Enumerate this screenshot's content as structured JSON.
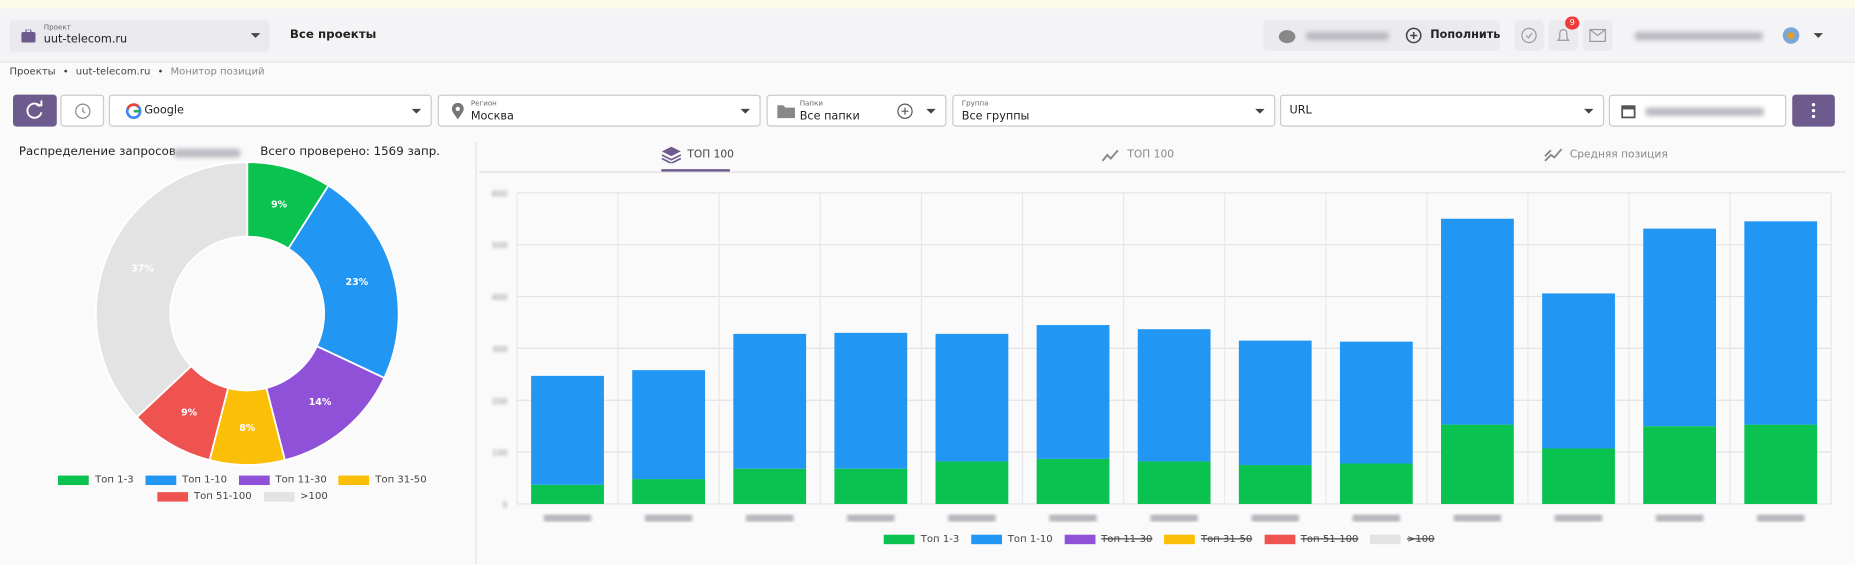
{
  "header": {
    "project_label": "Проект",
    "project": "uut-telecom.ru",
    "all_projects": "Все проекты",
    "topup": "Пополнить",
    "notifications": "9"
  },
  "breadcrumbs": [
    "Проекты",
    "uut-telecom.ru",
    "Монитор позиций"
  ],
  "filters": {
    "engine": "Google",
    "region_label": "Регион",
    "region": "Москва",
    "folders_label": "Папки",
    "folders": "Все папки",
    "group_label": "Группа",
    "group": "Все группы",
    "url": "URL"
  },
  "tabs": [
    "ТОП 100",
    "ТОП 100",
    "Средняя позиция"
  ],
  "chart_data": [
    {
      "type": "pie",
      "title": "Распределение запросов",
      "summary": "Всего проверено: 1569 запр.",
      "donut": true,
      "categories": [
        "Топ 1-3",
        "Топ 1-10",
        "Топ 11-30",
        "Топ 31-50",
        "Топ 51-100",
        ">100"
      ],
      "values": [
        9,
        23,
        14,
        8,
        9,
        37
      ],
      "value_labels": [
        "9%",
        "23%",
        "14%",
        "8%",
        "9%",
        "37%"
      ],
      "colors": [
        "#0ac24f",
        "#2196f3",
        "#8e51d8",
        "#fbbf07",
        "#ef5350",
        "#e3e3e3"
      ]
    },
    {
      "type": "stacked_bar",
      "categories": [
        null,
        null,
        null,
        null,
        null,
        null,
        null,
        null,
        null,
        null,
        null,
        null,
        null
      ],
      "ylim": [
        0,
        600
      ],
      "yticks": [
        0,
        100,
        200,
        300,
        400,
        500,
        600
      ],
      "grid": true,
      "series": [
        {
          "name": "Топ 1-3",
          "color": "#0ac24f",
          "values": [
            37,
            48,
            68,
            68,
            82,
            87,
            82,
            75,
            78,
            153,
            107,
            150,
            153
          ]
        },
        {
          "name": "Топ 1-10",
          "color": "#2196f3",
          "values": [
            210,
            210,
            260,
            262,
            246,
            258,
            255,
            240,
            235,
            397,
            299,
            381,
            392
          ]
        },
        {
          "name": "Топ 11-30",
          "color": "#8e51d8",
          "hidden": true
        },
        {
          "name": "Топ 31-50",
          "color": "#fbbf07",
          "hidden": true
        },
        {
          "name": "Топ 51-100",
          "color": "#ef5350",
          "hidden": true
        },
        {
          "name": ">100",
          "color": "#e3e3e3",
          "hidden": true
        }
      ]
    }
  ]
}
